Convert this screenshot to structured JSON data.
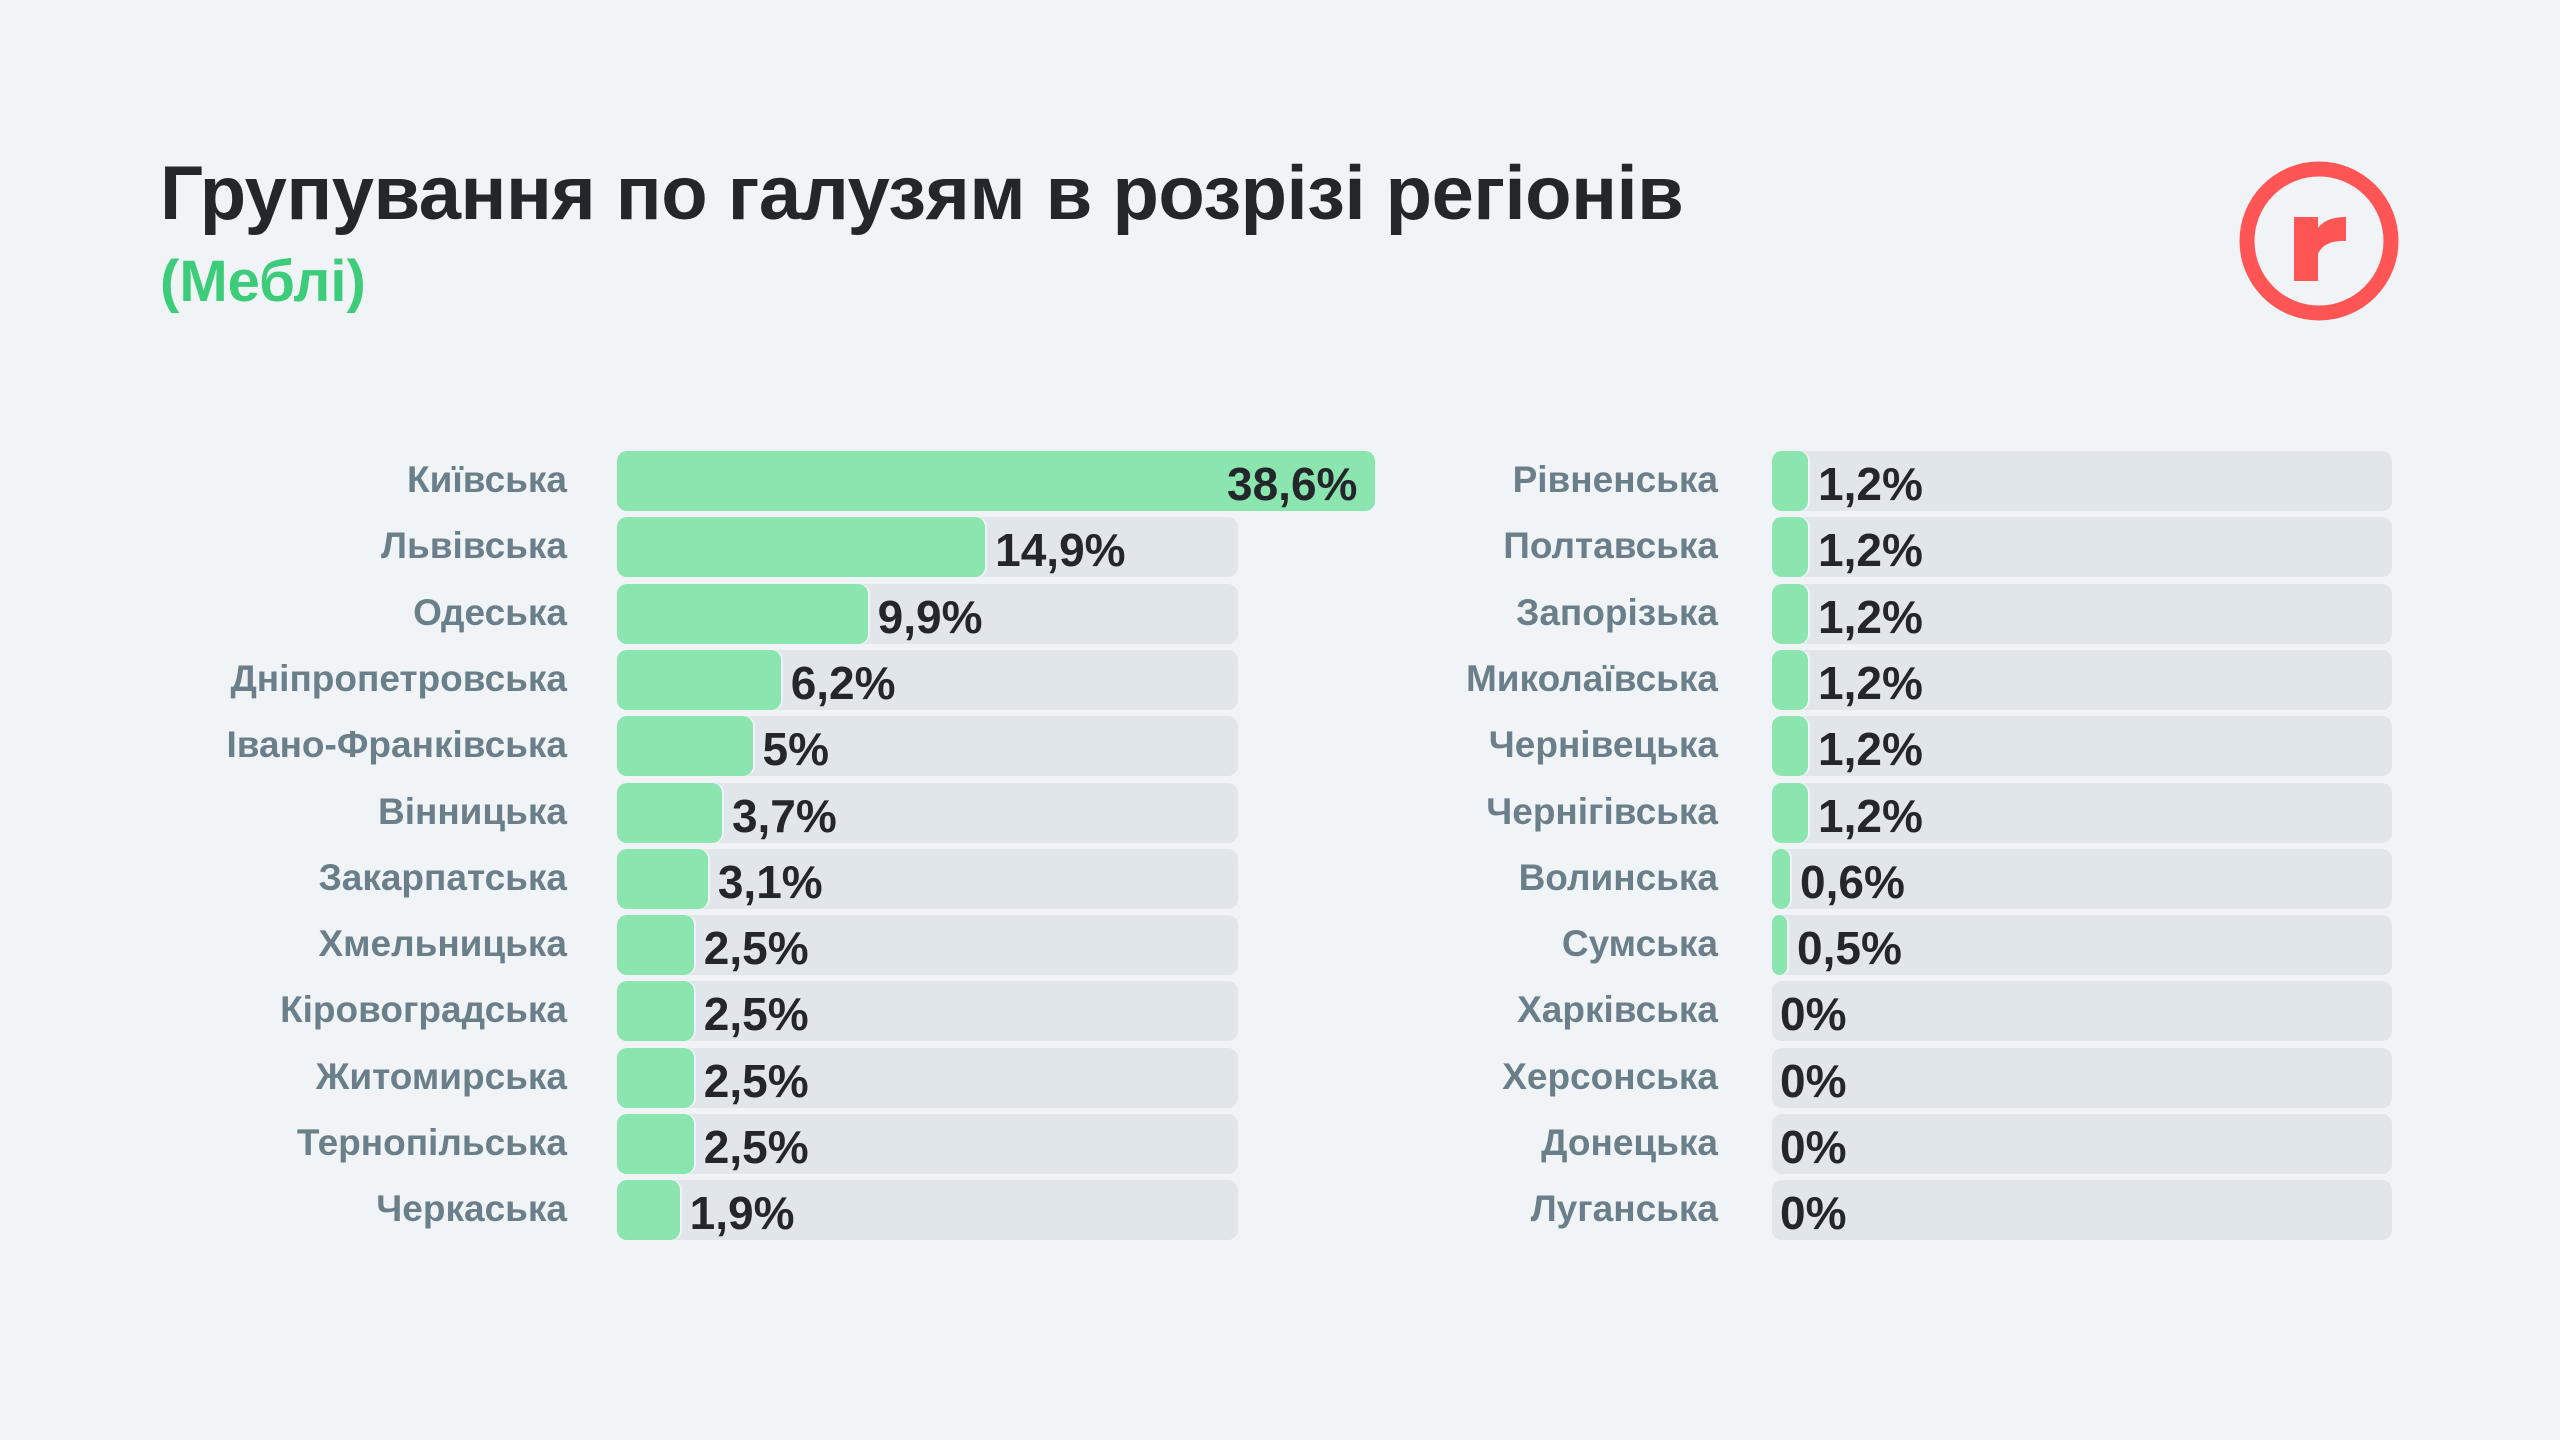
{
  "header": {
    "title": "Групування по галузям в розрізі регіонів",
    "subtitle": "(Меблі)"
  },
  "logo": {
    "letter": "r",
    "color": "#ff5555"
  },
  "colors": {
    "fill": "#8ae5ae",
    "track": "#e0e6e9",
    "accent": "#3dcc7a"
  },
  "chart_data": {
    "type": "bar",
    "title": "Групування по галузям в розрізі регіонів (Меблі)",
    "unit": "%",
    "columns": [
      {
        "categories": [
          "Київська",
          "Львівська",
          "Одеська",
          "Дніпропетровська",
          "Івано-Франківська",
          "Вінницька",
          "Закарпатська",
          "Хмельницька",
          "Кіровоградська",
          "Житомирська",
          "Тернопільська",
          "Черкаська"
        ],
        "values": [
          38.6,
          14.9,
          9.9,
          6.2,
          5,
          3.7,
          3.1,
          2.5,
          2.5,
          2.5,
          2.5,
          1.9
        ],
        "labels": [
          "38,6%",
          "14,9%",
          "9,9%",
          "6,2%",
          "5%",
          "3,7%",
          "3,1%",
          "2,5%",
          "2,5%",
          "2,5%",
          "2,5%",
          "1,9%"
        ]
      },
      {
        "categories": [
          "Рівненська",
          "Полтавська",
          "Запорізька",
          "Миколаївська",
          "Чернівецька",
          "Чернігівська",
          "Волинська",
          "Сумська",
          "Харківська",
          "Херсонська",
          "Донецька",
          "Луганська"
        ],
        "values": [
          1.2,
          1.2,
          1.2,
          1.2,
          1.2,
          1.2,
          0.6,
          0.5,
          0,
          0,
          0,
          0
        ],
        "labels": [
          "1,2%",
          "1,2%",
          "1,2%",
          "1,2%",
          "1,2%",
          "1,2%",
          "0,6%",
          "0,5%",
          "0%",
          "0%",
          "0%",
          "0%"
        ]
      }
    ]
  }
}
